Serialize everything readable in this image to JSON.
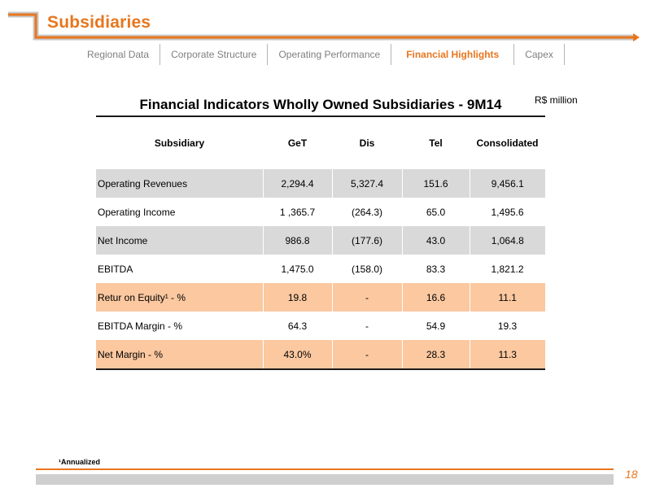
{
  "header": {
    "title": "Subsidiaries",
    "accent_color": "#e8761e"
  },
  "nav": {
    "tabs": [
      {
        "label": "Regional Data"
      },
      {
        "label": "Corporate Structure"
      },
      {
        "label": "Operating Performance"
      },
      {
        "label": "Financial Highlights",
        "active": true
      },
      {
        "label": "Capex"
      }
    ]
  },
  "table": {
    "title": "Financial Indicators Wholly Owned Subsidiaries - 9M14",
    "unit": "R$ million",
    "columns": [
      "Subsidiary",
      "GeT",
      "Dis",
      "Tel",
      "Consolidated"
    ],
    "rows": [
      {
        "cells": [
          "Operating Revenues",
          "2,294.4",
          "5,327.4",
          "151.6",
          "9,456.1"
        ],
        "shade": "grey"
      },
      {
        "cells": [
          "Operating Income",
          "1 ,365.7",
          "(264.3)",
          "65.0",
          "1,495.6"
        ],
        "shade": "none"
      },
      {
        "cells": [
          "Net Income",
          "986.8",
          "(177.6)",
          "43.0",
          "1,064.8"
        ],
        "shade": "grey"
      },
      {
        "cells": [
          "EBITDA",
          "1,475.0",
          "(158.0)",
          "83.3",
          "1,821.2"
        ],
        "shade": "none"
      },
      {
        "cells": [
          "Retur on Equity¹ - %",
          "19.8",
          "-",
          "16.6",
          "11.1"
        ],
        "shade": "orange"
      },
      {
        "cells": [
          "EBITDA Margin - %",
          "64.3",
          "-",
          "54.9",
          "19.3"
        ],
        "shade": "none"
      },
      {
        "cells": [
          "Net Margin - %",
          "43.0%",
          "-",
          "28.3",
          "11.3"
        ],
        "shade": "orange"
      }
    ]
  },
  "footnote": "¹Annualized",
  "page_number": "18"
}
